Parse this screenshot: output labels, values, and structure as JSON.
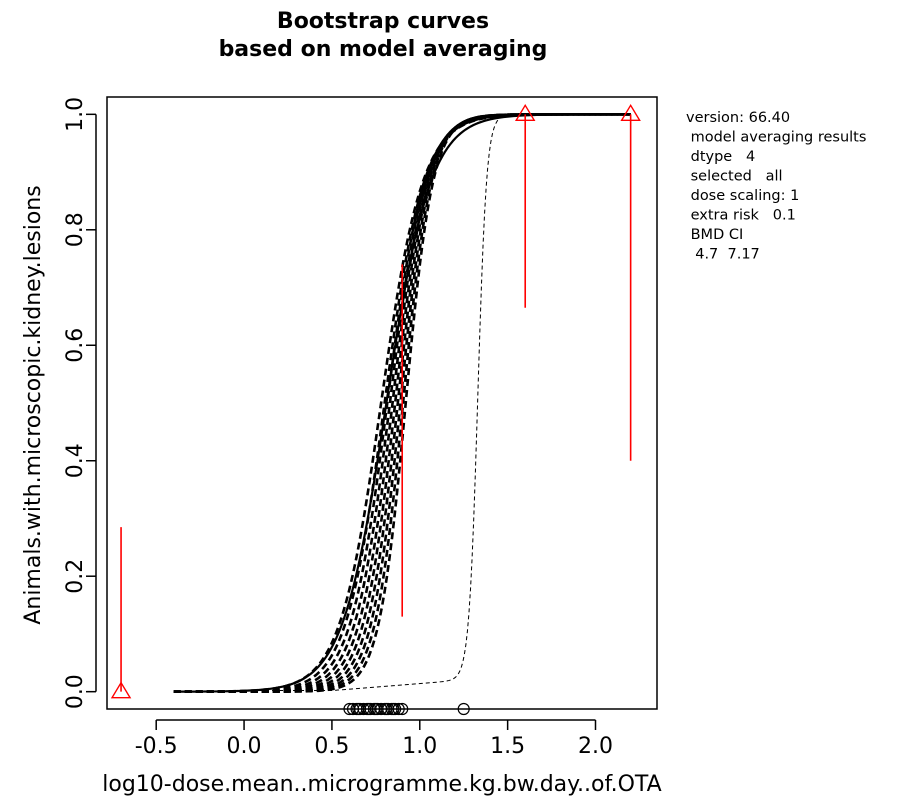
{
  "chart_data": {
    "type": "line",
    "title_lines": [
      "Bootstrap curves",
      "based on model averaging"
    ],
    "xlabel": "log10-dose.mean..microgramme.kg.bw.day..of.OTA",
    "ylabel": "Animals.with.microscopic.kidney.lesions",
    "xlim": [
      -0.78,
      2.35
    ],
    "ylim": [
      -0.03,
      1.03
    ],
    "x_ticks": [
      -0.5,
      0.0,
      0.5,
      1.0,
      1.5,
      2.0
    ],
    "x_tick_labels": [
      "-0.5",
      "0.0",
      "0.5",
      "1.0",
      "1.5",
      "2.0"
    ],
    "y_ticks": [
      0.0,
      0.2,
      0.4,
      0.6,
      0.8,
      1.0
    ],
    "y_tick_labels": [
      "0.0",
      "0.2",
      "0.4",
      "0.6",
      "0.8",
      "1.0"
    ],
    "grid": false,
    "info_lines": [
      "version: 66.40",
      " model averaging results",
      " dtype   4",
      " selected   all",
      " dose scaling: 1",
      " extra risk   0.1",
      " BMD CI",
      "  4.7  7.17"
    ],
    "observed_points": [
      {
        "x": -0.7,
        "y": 0.0
      },
      {
        "x": 1.6,
        "y": 1.0
      },
      {
        "x": 2.2,
        "y": 1.0
      }
    ],
    "confidence_intervals": [
      {
        "x": -0.7,
        "lower": 0.0,
        "upper": 0.285
      },
      {
        "x": 0.9,
        "lower": 0.13,
        "upper": 0.74
      },
      {
        "x": 1.6,
        "lower": 0.665,
        "upper": 1.0
      },
      {
        "x": 2.2,
        "lower": 0.4,
        "upper": 1.0
      }
    ],
    "bootstrap_curves": {
      "x_start": -0.4,
      "x_end": 2.2,
      "midpoints": [
        0.78,
        0.8,
        0.815,
        0.83,
        0.845,
        0.86,
        0.875,
        0.89,
        0.905,
        0.92
      ],
      "slopes": [
        8.5,
        9.0,
        9.5,
        10.0,
        10.5,
        11.0,
        11.5,
        12.0,
        12.5,
        13.0
      ]
    },
    "solid_curve": {
      "x_start": -0.4,
      "x_end": 2.2,
      "midpoint": 0.81,
      "slope": 8.0
    },
    "thin_curve": {
      "x_start": 0.0,
      "x_end": 1.6,
      "midpoint": 1.33,
      "slope": 40,
      "floor": 0.002,
      "bump": 0.018
    },
    "bmd_markers_y": -0.03,
    "bmd_markers_x": [
      0.6,
      0.62,
      0.64,
      0.65,
      0.66,
      0.68,
      0.7,
      0.71,
      0.72,
      0.74,
      0.75,
      0.76,
      0.78,
      0.8,
      0.81,
      0.82,
      0.84,
      0.85,
      0.86,
      0.88,
      0.9,
      1.25
    ],
    "colors": {
      "curves": "#000000",
      "observed": "#ff0000",
      "axis": "#000000"
    }
  }
}
